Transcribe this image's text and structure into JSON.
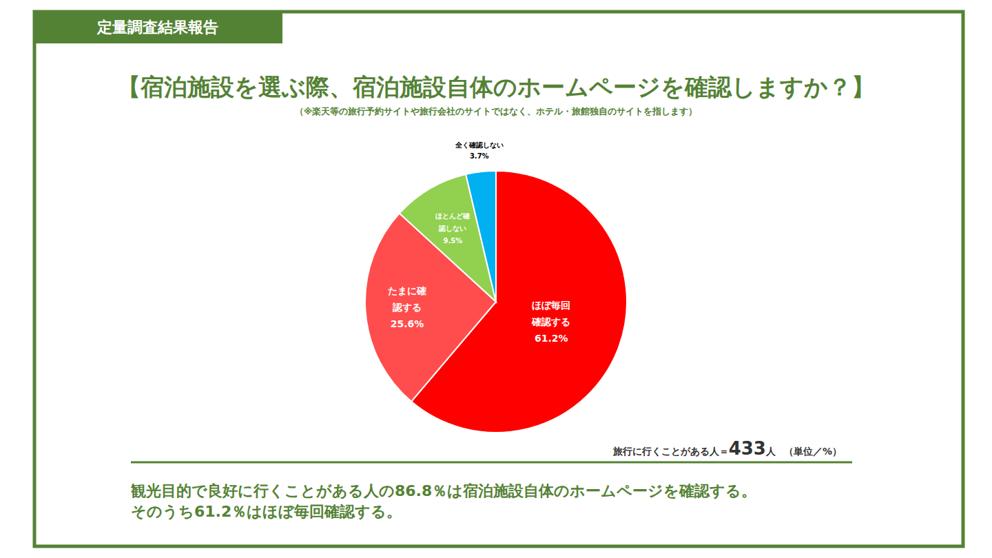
{
  "header": {
    "label": "定量調査結果報告"
  },
  "chart_data": {
    "type": "pie",
    "title": "【宿泊施設を選ぶ際、宿泊施設自体のホームページを確認しますか？】",
    "subtitle": "（※楽天等の旅行予約サイトや旅行会社のサイトではなく、ホテル・旅館独自のサイトを指します）",
    "categories": [
      "ほぼ毎回確認する",
      "たまに確認する",
      "ほとんど確認しない",
      "全く確認しない"
    ],
    "values": [
      61.2,
      25.6,
      9.5,
      3.7
    ],
    "value_labels": [
      "61.2%",
      "25.6%",
      "9.5%",
      "3.7%"
    ],
    "colors": [
      "#ff0000",
      "#ff4d4d",
      "#92d050",
      "#00b0f0"
    ],
    "data_labels": true
  },
  "sample": {
    "label": "旅行に行くことがある人＝",
    "n": 433,
    "unit": "人",
    "note": "（単位／%）"
  },
  "conclusion": [
    "観光目的で良好に行くことがある人の86.8％は宿泊施設自体のホームページを確認する。",
    "そのうち61.2％はほぼ毎回確認する。"
  ]
}
